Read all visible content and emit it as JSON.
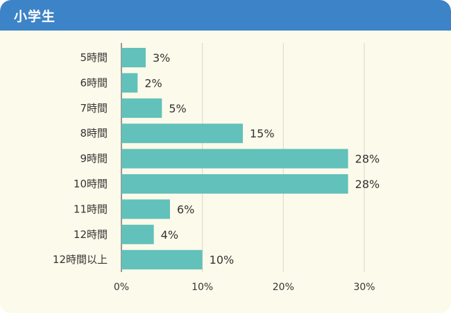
{
  "header": {
    "title": "小学生"
  },
  "chart_data": {
    "type": "bar",
    "orientation": "horizontal",
    "title": "小学生",
    "categories": [
      "5時間",
      "6時間",
      "7時間",
      "8時間",
      "9時間",
      "10時間",
      "11時間",
      "12時間",
      "12時間以上"
    ],
    "values": [
      3,
      2,
      5,
      15,
      28,
      28,
      6,
      4,
      10
    ],
    "value_labels": [
      "3%",
      "2%",
      "5%",
      "15%",
      "28%",
      "28%",
      "6%",
      "4%",
      "10%"
    ],
    "xticks": [
      "0%",
      "10%",
      "20%",
      "30%"
    ],
    "xtick_values": [
      0,
      10,
      20,
      30
    ],
    "xlim": [
      0,
      30
    ],
    "grid": true,
    "colors": {
      "bar": "#62c1ba",
      "header": "#3d83c7",
      "background": "#fcfaea",
      "grid": "#d9d6c6"
    }
  }
}
